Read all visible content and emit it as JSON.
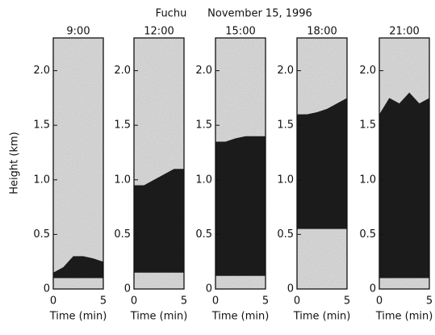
{
  "header": {
    "site": "Fuchu",
    "date": "November 15, 1996"
  },
  "chart_data": [
    {
      "type": "area",
      "title": "9:00",
      "ylabel": "Height (km)",
      "xlabel": "Time (min)",
      "x": [
        0,
        1,
        2,
        3,
        4,
        5
      ],
      "values": [
        0.15,
        0.2,
        0.3,
        0.3,
        0.28,
        0.25
      ],
      "base": [
        0.1,
        0.1,
        0.1,
        0.1,
        0.1,
        0.1
      ],
      "xlim": [
        0,
        5
      ],
      "ylim": [
        0,
        2.3
      ],
      "xticks": [
        0,
        5
      ],
      "yticks": [
        0,
        0.5,
        {
          "value": 1,
          "label": "1.0"
        },
        1.5,
        {
          "value": 2,
          "label": "2.0"
        }
      ],
      "color": "#111111"
    },
    {
      "type": "area",
      "title": "12:00",
      "xlabel": "Time (min)",
      "x": [
        0,
        1,
        2,
        3,
        4,
        5
      ],
      "values": [
        0.95,
        0.95,
        1.0,
        1.05,
        1.1,
        1.1
      ],
      "base": [
        0.15,
        0.15,
        0.15,
        0.15,
        0.15,
        0.15
      ],
      "xlim": [
        0,
        5
      ],
      "ylim": [
        0,
        2.3
      ],
      "xticks": [
        0,
        5
      ],
      "yticks": [
        0,
        0.5,
        {
          "value": 1,
          "label": "1.0"
        },
        1.5,
        {
          "value": 2,
          "label": "2.0"
        }
      ],
      "color": "#111111"
    },
    {
      "type": "area",
      "title": "15:00",
      "xlabel": "Time (min)",
      "x": [
        0,
        1,
        2,
        3,
        4,
        5
      ],
      "values": [
        1.35,
        1.35,
        1.38,
        1.4,
        1.4,
        1.4
      ],
      "base": [
        0.12,
        0.12,
        0.12,
        0.12,
        0.12,
        0.12
      ],
      "xlim": [
        0,
        5
      ],
      "ylim": [
        0,
        2.3
      ],
      "xticks": [
        0,
        5
      ],
      "yticks": [
        0,
        0.5,
        {
          "value": 1,
          "label": "1.0"
        },
        1.5,
        {
          "value": 2,
          "label": "2.0"
        }
      ],
      "color": "#111111"
    },
    {
      "type": "area",
      "title": "18:00",
      "xlabel": "Time (min)",
      "x": [
        0,
        1,
        2,
        3,
        4,
        5
      ],
      "values": [
        1.6,
        1.6,
        1.62,
        1.65,
        1.7,
        1.75
      ],
      "base": [
        0.55,
        0.55,
        0.55,
        0.55,
        0.55,
        0.55
      ],
      "xlim": [
        0,
        5
      ],
      "ylim": [
        0,
        2.3
      ],
      "xticks": [
        0,
        5
      ],
      "yticks": [
        0,
        0.5,
        {
          "value": 1,
          "label": "1.0"
        },
        1.5,
        {
          "value": 2,
          "label": "2.0"
        }
      ],
      "color": "#111111"
    },
    {
      "type": "area",
      "title": "21:00",
      "xlabel": "Time (min)",
      "x": [
        0,
        1,
        2,
        3,
        4,
        5
      ],
      "values": [
        1.6,
        1.75,
        1.7,
        1.8,
        1.7,
        1.75
      ],
      "base": [
        0.1,
        0.1,
        0.1,
        0.1,
        0.1,
        0.1
      ],
      "xlim": [
        0,
        5
      ],
      "ylim": [
        0,
        2.3
      ],
      "xticks": [
        0,
        5
      ],
      "yticks": [
        0,
        0.5,
        {
          "value": 1,
          "label": "1.0"
        },
        1.5,
        {
          "value": 2,
          "label": "2.0"
        }
      ],
      "color": "#111111"
    }
  ]
}
